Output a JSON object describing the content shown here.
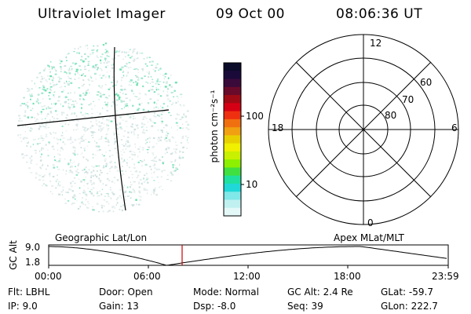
{
  "header": {
    "title": "Ultraviolet Imager",
    "date": "09 Oct 00",
    "time": "08:06:36 UT"
  },
  "colorbar": {
    "label": "photon cm⁻²s⁻¹",
    "ticks": [
      "100",
      "10"
    ],
    "colors": [
      "#0b0b2a",
      "#1a0a3a",
      "#3a0a3a",
      "#6a0a2a",
      "#a00a14",
      "#d60014",
      "#ee3010",
      "#f07010",
      "#f0a010",
      "#e8d000",
      "#f0f000",
      "#c8f000",
      "#8cf000",
      "#40e040",
      "#20e0a0",
      "#20d8d8",
      "#80e8e8",
      "#c0f0f0",
      "#e4f8f8"
    ],
    "axis_scale": "log"
  },
  "polar": {
    "labels": {
      "top": "12",
      "bottom": "0",
      "left": "18",
      "right": "6"
    },
    "lat_labels": [
      "60",
      "70",
      "80"
    ]
  },
  "timeline": {
    "left_title": "Geographic Lat/Lon",
    "right_title": "Apex MLat/MLT",
    "axis_title": "GC Alt",
    "y_ticks": [
      "9.0",
      "1.8"
    ],
    "x_ticks": [
      "00:00",
      "06:00",
      "12:00",
      "18:00",
      "23:59"
    ],
    "current_marker_color": "#cc0000"
  },
  "info": {
    "flt": "Flt: LBHL",
    "ip": "IP:  9.0",
    "door": "Door: Open",
    "gain": "Gain: 13",
    "mode": "Mode: Normal",
    "dsp": "Dsp:    -8.0",
    "gcalt": "GC Alt: 2.4 Re",
    "seq": "Seq: 39",
    "glat": "GLat: -59.7",
    "glon": "GLon: 222.7"
  }
}
